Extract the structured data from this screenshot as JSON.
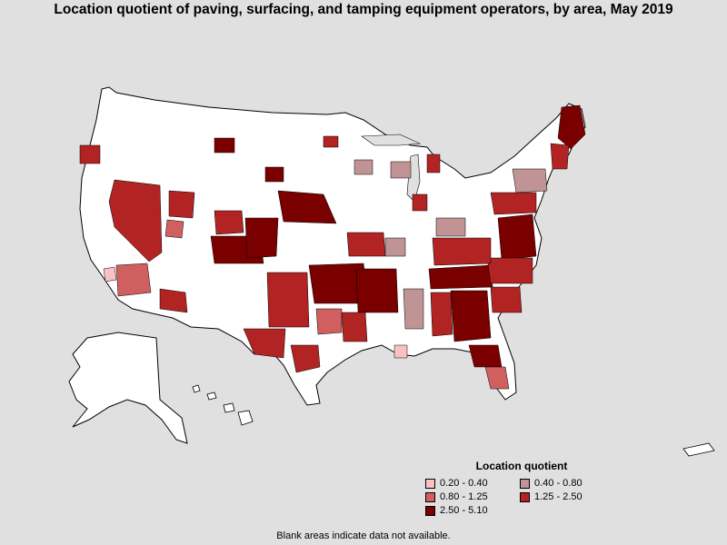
{
  "title": "Location quotient of paving, surfacing, and tamping equipment operators, by area, May 2019",
  "legend": {
    "title": "Location quotient",
    "items": [
      {
        "label": "0.20 - 0.40",
        "color": "#f9c0c6"
      },
      {
        "label": "0.40 - 0.80",
        "color": "#c09494"
      },
      {
        "label": "0.80 - 1.25",
        "color": "#d06060"
      },
      {
        "label": "1.25 - 2.50",
        "color": "#b22424"
      },
      {
        "label": "2.50 - 5.10",
        "color": "#7a0000"
      }
    ]
  },
  "footnote": "Blank areas indicate data not available.",
  "colors": {
    "background": "#e0e0e0",
    "land_no_data": "#ffffff",
    "border": "#000000"
  }
}
